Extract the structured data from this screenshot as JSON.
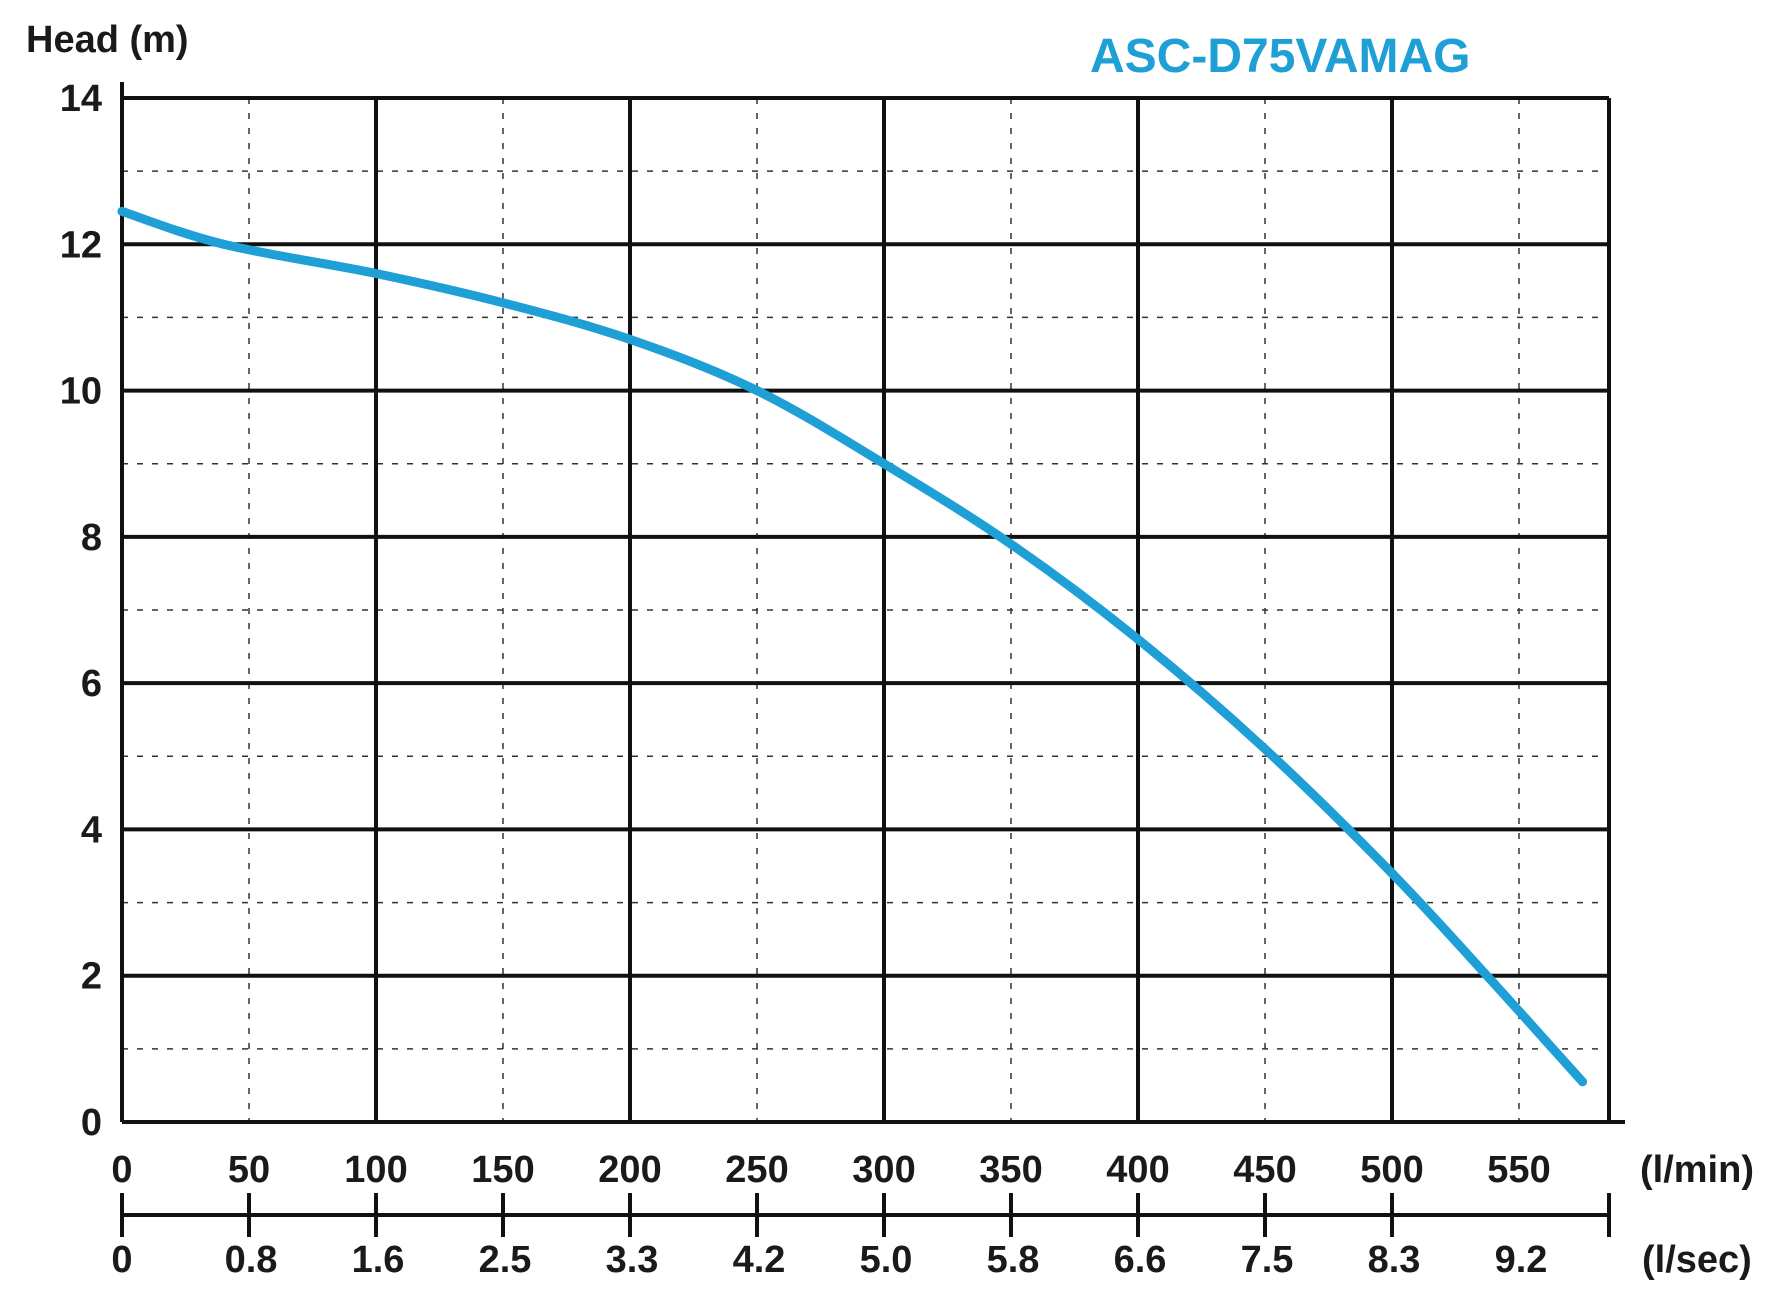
{
  "chart_data": {
    "type": "line",
    "title": "ASC-D75VAMAG",
    "title_color": "#1e9fd6",
    "ylabel": "Head (m)",
    "xlabel": "(l/min)",
    "x2label": "(l/sec)",
    "xlim": [
      0,
      592
    ],
    "ylim": [
      0,
      14
    ],
    "yticks": [
      "0",
      "2",
      "4",
      "6",
      "8",
      "10",
      "12",
      "14"
    ],
    "xticks": [
      "0",
      "50",
      "100",
      "150",
      "200",
      "250",
      "300",
      "350",
      "400",
      "450",
      "500",
      "550"
    ],
    "x2ticks": [
      "0",
      "0.8",
      "1.6",
      "2.5",
      "3.3",
      "4.2",
      "5.0",
      "5.8",
      "6.6",
      "7.5",
      "8.3",
      "9.2"
    ],
    "grid": true,
    "series": [
      {
        "name": "ASC-D75VAMAG",
        "color": "#1e9fd6",
        "x": [
          0,
          40,
          100,
          150,
          200,
          250,
          300,
          350,
          400,
          450,
          500,
          540,
          575
        ],
        "y": [
          12.45,
          12.0,
          11.6,
          11.2,
          10.7,
          10.0,
          9.0,
          7.9,
          6.6,
          5.1,
          3.4,
          1.9,
          0.55
        ]
      }
    ]
  }
}
